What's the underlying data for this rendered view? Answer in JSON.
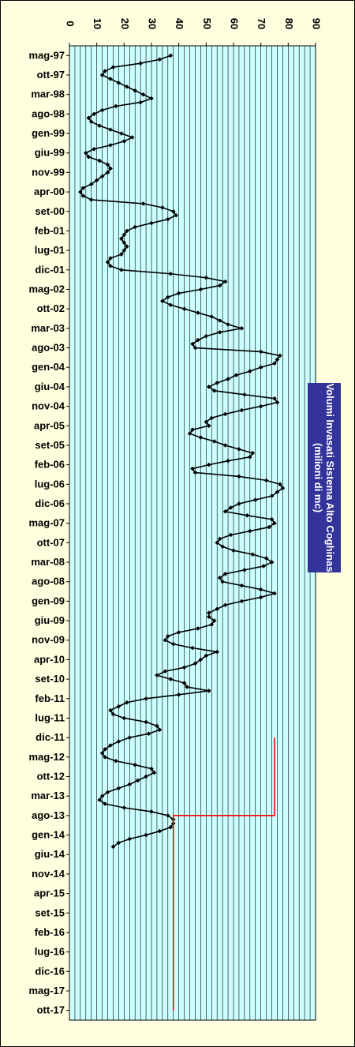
{
  "chart_data": {
    "type": "line",
    "title": "Volumi Invasati Sistema Alto Coghinas",
    "subtitle": "(milioni di mc)",
    "orientation": "rotated-90",
    "ylim": [
      0,
      90
    ],
    "y_ticks": [
      0,
      10,
      20,
      30,
      40,
      50,
      60,
      70,
      80,
      90
    ],
    "grid": true,
    "x_tick_labels": [
      "mag-97",
      "ott-97",
      "mar-98",
      "ago-98",
      "gen-99",
      "giu-99",
      "nov-99",
      "apr-00",
      "set-00",
      "feb-01",
      "lug-01",
      "dic-01",
      "mag-02",
      "ott-02",
      "mar-03",
      "ago-03",
      "gen-04",
      "giu-04",
      "nov-04",
      "apr-05",
      "set-05",
      "feb-06",
      "lug-06",
      "dic-06",
      "mag-07",
      "ott-07",
      "mar-08",
      "ago-08",
      "gen-09",
      "giu-09",
      "nov-09",
      "apr-10",
      "set-10",
      "feb-11",
      "lug-11",
      "dic-11",
      "mag-12",
      "ott-12",
      "mar-13",
      "ago-13",
      "gen-14",
      "giu-14",
      "nov-14",
      "apr-15",
      "set-15",
      "feb-16",
      "lug-16",
      "dic-16",
      "mag-17",
      "ott-17"
    ],
    "series": [
      {
        "name": "",
        "color": "#000000",
        "marker": "diamond",
        "values": [
          37,
          33,
          26,
          16,
          13,
          12,
          15,
          18,
          21,
          24,
          27,
          30,
          26,
          17,
          12,
          9,
          7,
          8,
          11,
          15,
          19,
          23,
          20,
          15,
          9,
          6,
          7,
          11,
          14,
          15,
          14,
          12,
          10,
          8,
          5,
          4,
          5,
          8,
          27,
          34,
          38,
          39,
          36,
          30,
          24,
          21,
          20,
          19,
          20,
          21,
          20,
          19,
          15,
          14,
          15,
          19,
          37,
          50,
          57,
          55,
          48,
          40,
          36,
          34,
          37,
          42,
          47,
          52,
          55,
          58,
          63,
          55,
          50,
          47,
          45,
          46,
          70,
          77,
          76,
          75,
          70,
          66,
          61,
          58,
          54,
          51,
          53,
          64,
          75,
          76,
          70,
          63,
          57,
          52,
          50,
          51,
          45,
          44,
          48,
          53,
          57,
          62,
          67,
          66,
          58,
          51,
          45,
          46,
          62,
          72,
          77,
          78,
          76,
          74,
          68,
          62,
          59,
          57,
          65,
          74,
          75,
          73,
          66,
          59,
          55,
          54,
          56,
          60,
          67,
          72,
          74,
          71,
          64,
          57,
          55,
          56,
          63,
          70,
          75,
          70,
          63,
          57,
          54,
          51,
          51,
          53,
          52,
          47,
          40,
          36,
          35,
          38,
          45,
          54,
          50,
          48,
          46,
          42,
          35,
          32,
          37,
          42,
          43,
          51,
          40,
          28,
          21,
          18,
          15,
          16,
          20,
          28,
          32,
          33,
          29,
          22,
          18,
          15,
          13,
          12,
          13,
          17,
          24,
          30,
          31,
          28,
          25,
          22,
          18,
          14,
          12,
          11,
          13,
          20,
          30,
          36,
          38,
          38,
          37,
          33,
          28,
          22,
          18,
          16
        ],
        "sample_interval": "1 month"
      },
      {
        "name": "",
        "color": "#ff0000",
        "step": true,
        "points": [
          [
            "dic-11",
            75
          ],
          [
            "ago-13",
            75
          ],
          [
            "ago-13",
            38
          ],
          [
            "ott-17",
            38
          ]
        ]
      }
    ]
  }
}
